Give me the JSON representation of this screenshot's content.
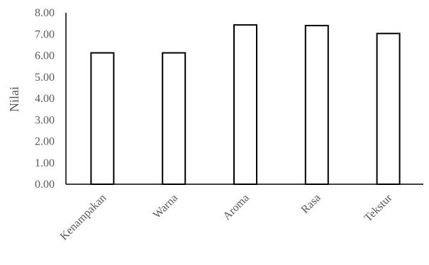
{
  "chart_data": {
    "type": "bar",
    "title": "",
    "xlabel": "",
    "ylabel": "Nilai",
    "categories": [
      "Kenampakan",
      "Warna",
      "Aroma",
      "Rasa",
      "Tekstur"
    ],
    "values": [
      6.13,
      6.13,
      7.43,
      7.4,
      7.03
    ],
    "ylim": [
      0,
      8
    ],
    "yticks": [
      0,
      1,
      2,
      3,
      4,
      5,
      6,
      7,
      8
    ],
    "ytick_labels": [
      "0.00",
      "1.00",
      "2.00",
      "3.00",
      "4.00",
      "5.00",
      "6.00",
      "7.00",
      "8.00"
    ],
    "grid": false,
    "legend": "none",
    "bar_fill": "#ffffff",
    "bar_stroke": "#000000",
    "axis_color": "#000000",
    "label_color": "#595959"
  }
}
